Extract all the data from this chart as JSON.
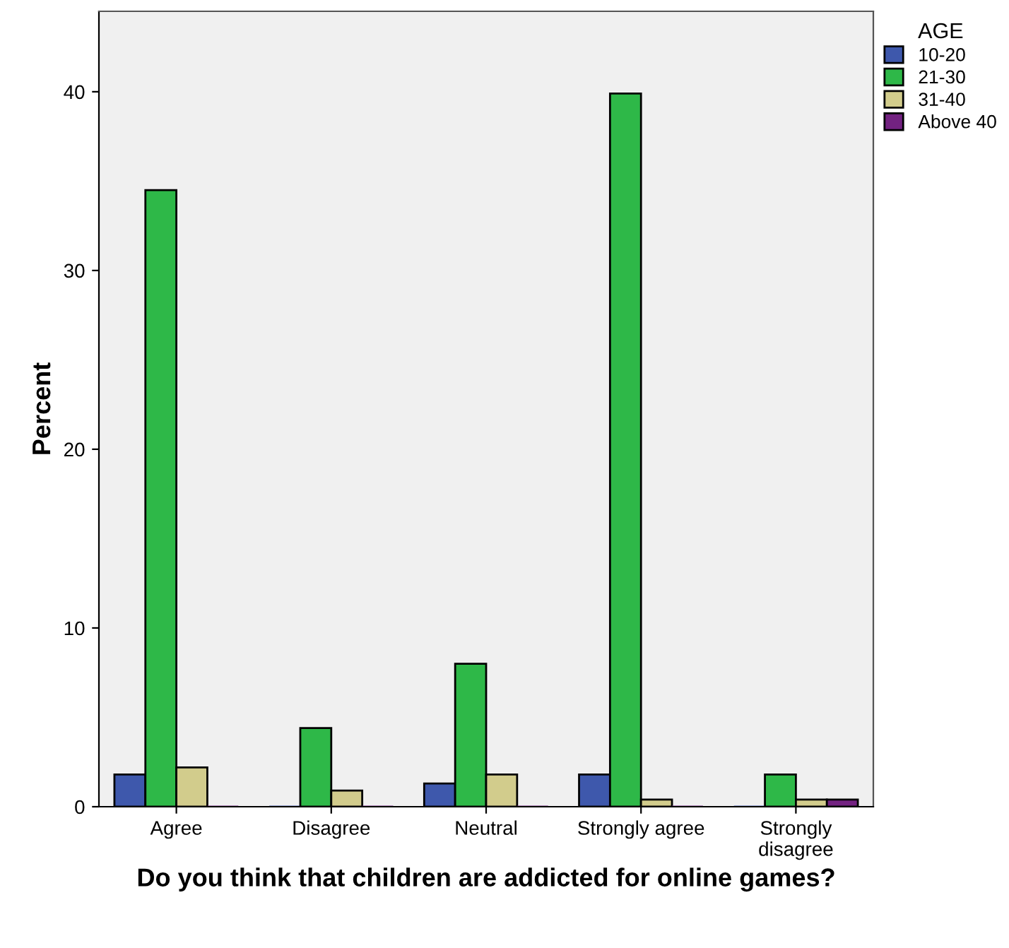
{
  "chart_data": {
    "type": "bar",
    "xlabel": "Do you think that children are addicted for online games?",
    "ylabel": "Percent",
    "legend_title": "AGE",
    "categories": [
      "Agree",
      "Disagree",
      "Neutral",
      "Strongly agree",
      "Strongly disagree"
    ],
    "series": [
      {
        "name": "10-20",
        "color": "#3e58ac",
        "values": [
          1.8,
          0,
          1.3,
          1.8,
          0
        ]
      },
      {
        "name": "21-30",
        "color": "#2eb848",
        "values": [
          34.5,
          4.4,
          8.0,
          39.9,
          1.8
        ]
      },
      {
        "name": "31-40",
        "color": "#d2cc8c",
        "values": [
          2.2,
          0.9,
          1.8,
          0.4,
          0.4
        ]
      },
      {
        "name": "Above 40",
        "color": "#732281",
        "values": [
          0,
          0,
          0,
          0,
          0.4
        ]
      }
    ],
    "ylim": [
      0,
      44.5
    ],
    "yticks": [
      0,
      10,
      20,
      30,
      40
    ],
    "grid": false,
    "legend": "top right"
  }
}
